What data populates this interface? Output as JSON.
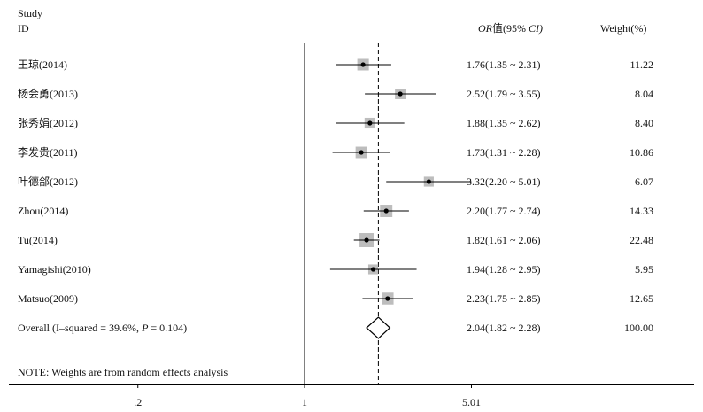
{
  "header": {
    "study_line1": "Study",
    "study_line2": "ID",
    "or_prefix": "OR",
    "or_rest": "值(95%",
    "ci_label": "CI)",
    "weight": "Weight(%)"
  },
  "note": "NOTE: Weights are from random effects analysis",
  "chart_data": {
    "type": "forest",
    "x_scale": "log",
    "reference_line": 1,
    "pooled_estimate_line": 2.04,
    "x_ticks": [
      {
        "value": 0.2,
        "label": ".2"
      },
      {
        "value": 1,
        "label": "1"
      },
      {
        "value": 5.01,
        "label": "5.01"
      }
    ],
    "studies": [
      {
        "name": "王琼(2014)",
        "or": 1.76,
        "lo": 1.35,
        "hi": 2.31,
        "weight": 11.22,
        "ci_text": "1.76(1.35 ~ 2.31)",
        "weight_text": "11.22"
      },
      {
        "name": "杨会勇(2013)",
        "or": 2.52,
        "lo": 1.79,
        "hi": 3.55,
        "weight": 8.04,
        "ci_text": "2.52(1.79 ~ 3.55)",
        "weight_text": "8.04"
      },
      {
        "name": "张秀娟(2012)",
        "or": 1.88,
        "lo": 1.35,
        "hi": 2.62,
        "weight": 8.4,
        "ci_text": "1.88(1.35 ~ 2.62)",
        "weight_text": "8.40"
      },
      {
        "name": "李发贵(2011)",
        "or": 1.73,
        "lo": 1.31,
        "hi": 2.28,
        "weight": 10.86,
        "ci_text": "1.73(1.31 ~ 2.28)",
        "weight_text": "10.86"
      },
      {
        "name": "叶德郃(2012)",
        "or": 3.32,
        "lo": 2.2,
        "hi": 5.01,
        "weight": 6.07,
        "ci_text": "3.32(2.20 ~ 5.01)",
        "weight_text": "6.07"
      },
      {
        "name": "Zhou(2014)",
        "or": 2.2,
        "lo": 1.77,
        "hi": 2.74,
        "weight": 14.33,
        "ci_text": "2.20(1.77 ~ 2.74)",
        "weight_text": "14.33"
      },
      {
        "name": "Tu(2014)",
        "or": 1.82,
        "lo": 1.61,
        "hi": 2.06,
        "weight": 22.48,
        "ci_text": "1.82(1.61 ~ 2.06)",
        "weight_text": "22.48"
      },
      {
        "name": "Yamagishi(2010)",
        "or": 1.94,
        "lo": 1.28,
        "hi": 2.95,
        "weight": 5.95,
        "ci_text": "1.94(1.28 ~ 2.95)",
        "weight_text": "5.95"
      },
      {
        "name": "Matsuo(2009)",
        "or": 2.23,
        "lo": 1.75,
        "hi": 2.85,
        "weight": 12.65,
        "ci_text": "2.23(1.75 ~ 2.85)",
        "weight_text": "12.65"
      }
    ],
    "overall": {
      "label_prefix": "Overall  (I–squared = 39.6%, ",
      "p_label": "P",
      "label_suffix": " = 0.104)",
      "or": 2.04,
      "lo": 1.82,
      "hi": 2.28,
      "ci_text": "2.04(1.82 ~ 2.28)",
      "weight_text": "100.00"
    }
  }
}
